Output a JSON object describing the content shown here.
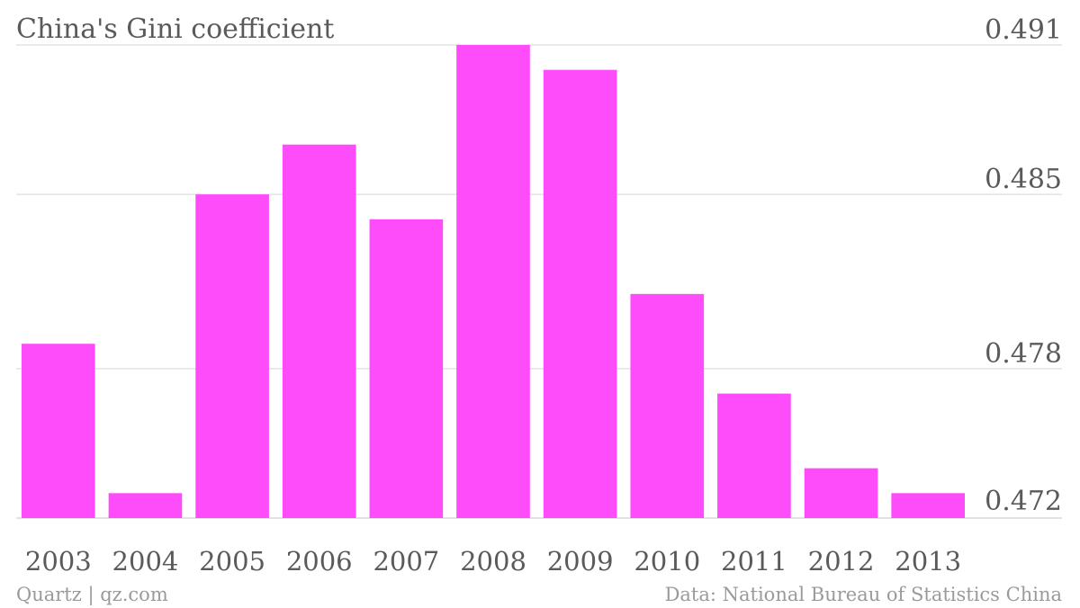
{
  "colors": {
    "bar": "#ff4cfb",
    "text": "#5a5a5a",
    "footer_text": "#9a9a9a",
    "grid": "#e3e3e3"
  },
  "footer": {
    "left": "Quartz | qz.com",
    "right": "Data: National Bureau of Statistics China"
  },
  "chart_data": {
    "type": "bar",
    "title": "China's Gini coefficient",
    "xlabel": "",
    "ylabel": "",
    "categories": [
      "2003",
      "2004",
      "2005",
      "2006",
      "2007",
      "2008",
      "2009",
      "2010",
      "2011",
      "2012",
      "2013"
    ],
    "values": [
      0.479,
      0.473,
      0.485,
      0.487,
      0.484,
      0.491,
      0.49,
      0.481,
      0.477,
      0.474,
      0.473
    ],
    "ylim": [
      0.472,
      0.491
    ],
    "yticks": [
      0.472,
      0.478,
      0.485,
      0.491
    ],
    "ytick_labels": [
      "0.472",
      "0.478",
      "0.485",
      "0.491"
    ],
    "y_axis_position": "right",
    "grid": true,
    "legend": "none"
  }
}
